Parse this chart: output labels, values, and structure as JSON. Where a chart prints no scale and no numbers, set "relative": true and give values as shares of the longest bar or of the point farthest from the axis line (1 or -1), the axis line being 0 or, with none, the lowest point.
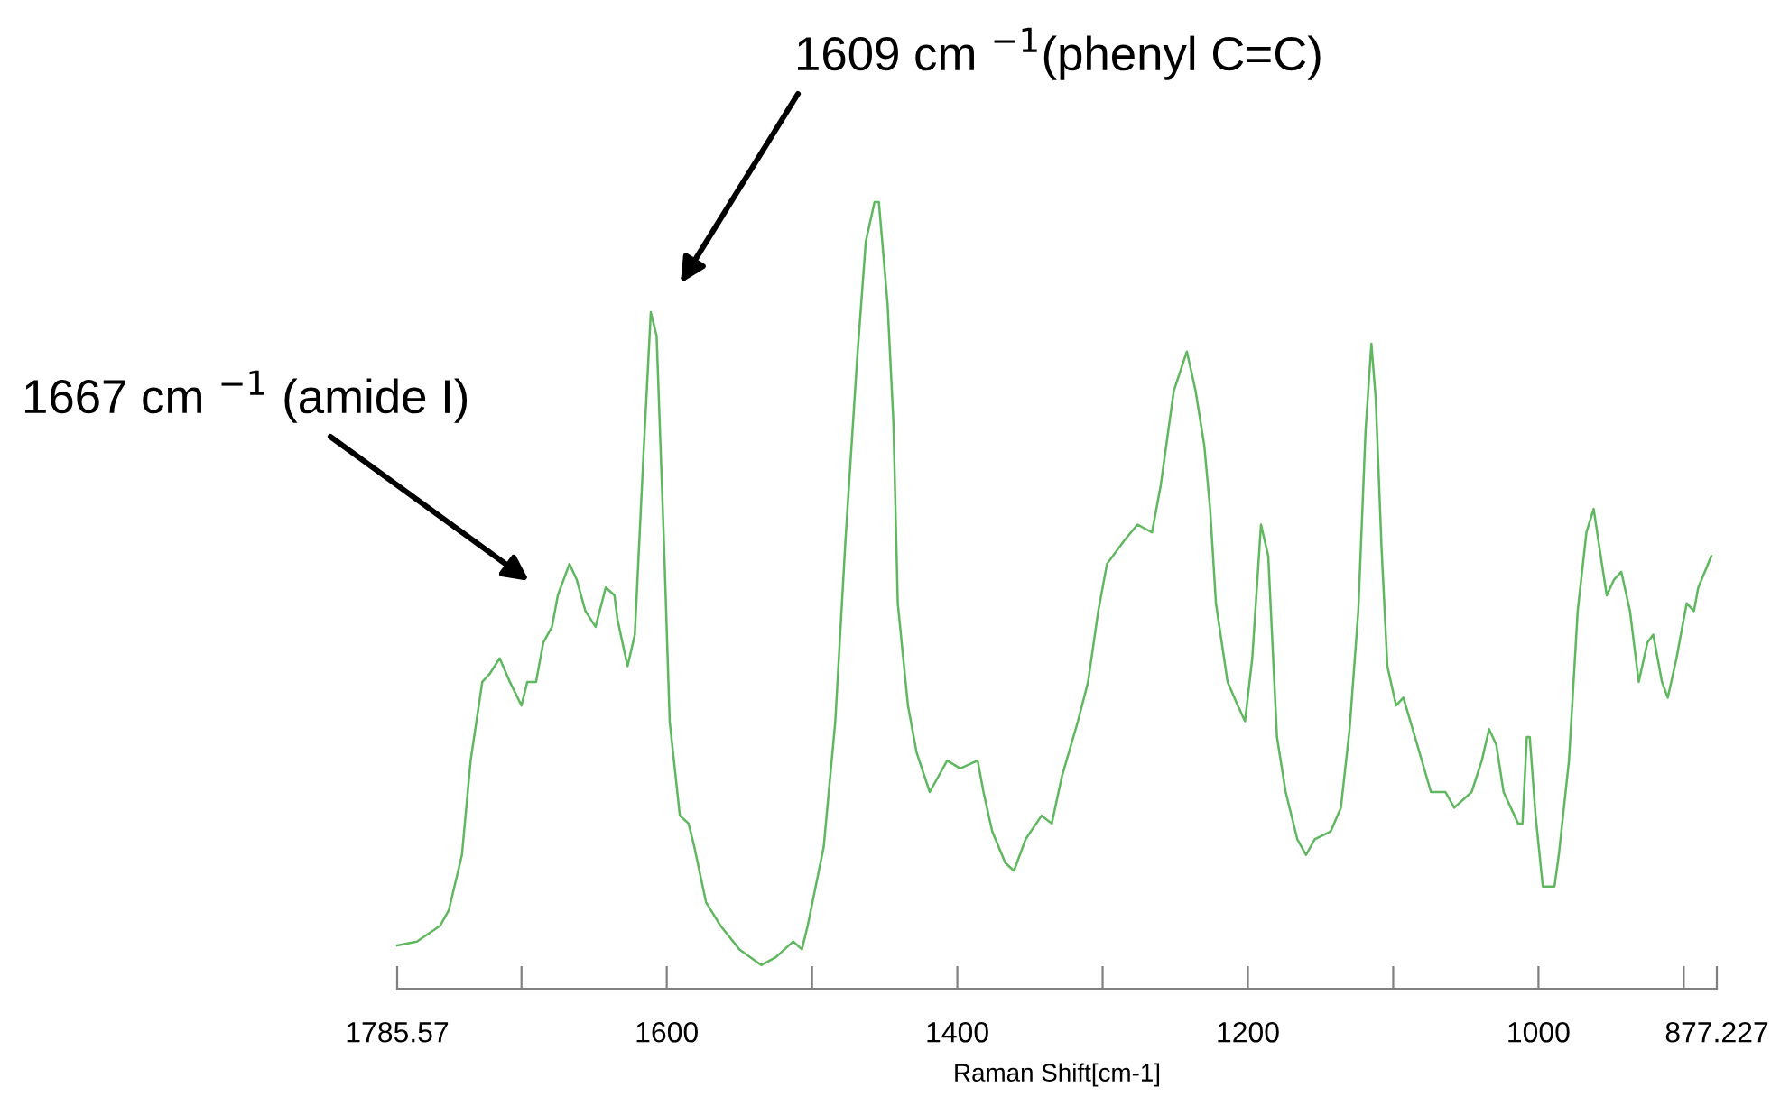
{
  "chart_data": {
    "type": "line",
    "relative": true,
    "xlabel": "Raman Shift[cm-1]",
    "xlim": [
      1785.57,
      877.227
    ],
    "xticks": [
      1785.57,
      {
        "value": 1700,
        "label": null
      },
      1600,
      {
        "value": 1500,
        "label": null
      },
      1400,
      {
        "value": 1300,
        "label": null
      },
      1200,
      {
        "value": 1100,
        "label": null
      },
      1000,
      {
        "value": 900,
        "label": null
      },
      877.227
    ],
    "annotations": [
      "1667 cm $^{−1}$ (amide I)",
      "1609 cm $^{−1}$(phenyl C=C)"
    ],
    "x": [
      1785.57,
      1772,
      1756,
      1750,
      1741,
      1735,
      1727,
      1722,
      1715,
      1708,
      1700,
      1696,
      1690,
      1685,
      1679,
      1675,
      1667,
      1662,
      1656,
      1649,
      1642,
      1636,
      1634,
      1627,
      1622,
      1616,
      1611,
      1607,
      1602,
      1598,
      1591,
      1585,
      1581,
      1573,
      1563,
      1550,
      1535,
      1525,
      1513,
      1507,
      1503,
      1492,
      1484,
      1477,
      1469,
      1463,
      1457,
      1454,
      1448,
      1444,
      1441,
      1434,
      1428,
      1419,
      1407,
      1398,
      1386,
      1382,
      1376,
      1367,
      1361,
      1353,
      1342,
      1335,
      1328,
      1317,
      1310,
      1303,
      1297,
      1285,
      1276,
      1266,
      1260,
      1251,
      1242,
      1236,
      1230,
      1226,
      1222,
      1214,
      1207,
      1202,
      1197,
      1191,
      1186,
      1180,
      1174,
      1166,
      1160,
      1154,
      1143,
      1136,
      1130,
      1124,
      1119,
      1115,
      1112,
      1108,
      1104,
      1098,
      1093,
      1085,
      1074,
      1064,
      1058,
      1046,
      1039,
      1034,
      1029,
      1024,
      1014,
      1011,
      1008,
      1006,
      1002,
      997,
      989,
      986,
      979,
      973,
      967,
      962,
      958,
      953,
      948,
      943,
      937,
      931,
      925,
      921,
      915,
      911,
      905,
      898,
      893,
      890,
      881
    ],
    "series": [
      {
        "color": "#5fb85f",
        "values": [
          0.055,
          0.06,
          0.08,
          0.1,
          0.17,
          0.29,
          0.39,
          0.4,
          0.42,
          0.39,
          0.36,
          0.39,
          0.39,
          0.44,
          0.46,
          0.5,
          0.54,
          0.52,
          0.48,
          0.46,
          0.51,
          0.5,
          0.47,
          0.41,
          0.45,
          0.68,
          0.86,
          0.83,
          0.57,
          0.34,
          0.22,
          0.21,
          0.18,
          0.11,
          0.08,
          0.05,
          0.03,
          0.04,
          0.06,
          0.05,
          0.08,
          0.18,
          0.34,
          0.57,
          0.8,
          0.95,
          1.0,
          1.0,
          0.87,
          0.72,
          0.49,
          0.36,
          0.3,
          0.25,
          0.29,
          0.28,
          0.29,
          0.25,
          0.2,
          0.16,
          0.15,
          0.19,
          0.22,
          0.21,
          0.27,
          0.34,
          0.39,
          0.48,
          0.54,
          0.57,
          0.59,
          0.58,
          0.64,
          0.76,
          0.81,
          0.76,
          0.69,
          0.61,
          0.49,
          0.39,
          0.36,
          0.34,
          0.42,
          0.59,
          0.55,
          0.32,
          0.25,
          0.19,
          0.17,
          0.19,
          0.2,
          0.23,
          0.33,
          0.48,
          0.71,
          0.82,
          0.75,
          0.56,
          0.41,
          0.36,
          0.37,
          0.32,
          0.25,
          0.25,
          0.23,
          0.25,
          0.29,
          0.33,
          0.31,
          0.25,
          0.21,
          0.21,
          0.32,
          0.32,
          0.22,
          0.13,
          0.13,
          0.17,
          0.29,
          0.48,
          0.58,
          0.61,
          0.56,
          0.5,
          0.52,
          0.53,
          0.48,
          0.39,
          0.44,
          0.45,
          0.39,
          0.37,
          0.42,
          0.49,
          0.48,
          0.51,
          0.55
        ]
      }
    ]
  }
}
